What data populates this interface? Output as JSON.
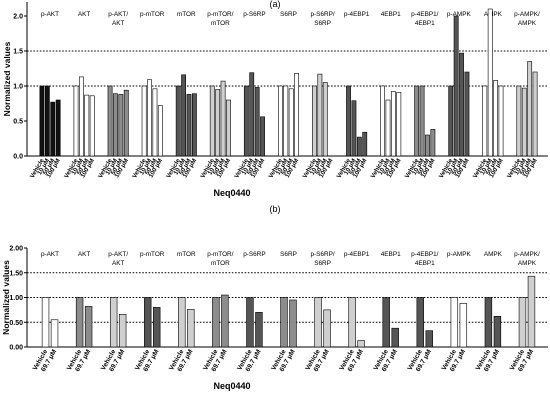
{
  "colors": {
    "black": "#111111",
    "white": "#ffffff",
    "dark_gray": "#555555",
    "mid_gray": "#8c8c8c",
    "light_gray": "#cfcfcf"
  },
  "chart_data": [
    {
      "type": "bar",
      "panel_label": "(a)",
      "ylabel": "Normalized values",
      "xlabel": "Neq0440",
      "ylim": [
        0,
        2.2
      ],
      "yticks": [
        0.0,
        0.5,
        1.0,
        1.5,
        2.0
      ],
      "ytick_labels": [
        "0.0",
        "0.5",
        "1.0",
        "1.5",
        "2.0"
      ],
      "reference_lines": [
        1.0,
        1.5
      ],
      "categories": [
        "Vehicle",
        "10 μM",
        "50 μM",
        "100 μM"
      ],
      "groups": [
        {
          "label": "p-AKT",
          "color": "black",
          "values": [
            1.0,
            1.0,
            0.77,
            0.8
          ]
        },
        {
          "label": "AKT",
          "color": "white",
          "values": [
            1.0,
            1.13,
            0.87,
            0.86
          ]
        },
        {
          "label": "p-AKT/\nAKT",
          "color": "mid_gray",
          "values": [
            1.0,
            0.89,
            0.88,
            0.94
          ]
        },
        {
          "label": "p-mTOR",
          "color": "white",
          "values": [
            1.0,
            1.09,
            0.96,
            0.72
          ]
        },
        {
          "label": "mTOR",
          "color": "dark_gray",
          "values": [
            1.0,
            1.16,
            0.88,
            0.89
          ]
        },
        {
          "label": "p-mTOR/\nmTOR",
          "color": "light_gray",
          "values": [
            1.0,
            0.95,
            1.07,
            0.8
          ]
        },
        {
          "label": "p-S6RP",
          "color": "dark_gray",
          "values": [
            1.0,
            1.19,
            0.98,
            0.56
          ]
        },
        {
          "label": "S6RP",
          "color": "white",
          "values": [
            1.0,
            1.0,
            0.96,
            1.18
          ]
        },
        {
          "label": "p-S6RP/\nS6RP",
          "color": "light_gray",
          "values": [
            1.0,
            1.17,
            1.05,
            0.0
          ]
        },
        {
          "label": "p-4EBP1",
          "color": "dark_gray",
          "values": [
            1.0,
            0.79,
            0.27,
            0.34
          ]
        },
        {
          "label": "4EBP1",
          "color": "white",
          "values": [
            1.0,
            0.8,
            0.92,
            0.91
          ]
        },
        {
          "label": "p-4EBP1/\n4EBP1",
          "color": "mid_gray",
          "values": [
            1.0,
            1.0,
            0.3,
            0.38
          ]
        },
        {
          "label": "p-AMPK",
          "color": "dark_gray",
          "values": [
            1.0,
            2.0,
            1.47,
            1.2
          ]
        },
        {
          "label": "AMPK",
          "color": "white",
          "values": [
            1.0,
            2.1,
            1.08,
            1.0
          ]
        },
        {
          "label": "p-AMPK/\nAMPK",
          "color": "light_gray",
          "values": [
            1.0,
            0.97,
            1.35,
            1.2
          ]
        }
      ]
    },
    {
      "type": "bar",
      "panel_label": "(b)",
      "ylabel": "Normalized values",
      "xlabel": "Neq0440",
      "ylim": [
        0,
        2.0
      ],
      "yticks": [
        0.0,
        0.5,
        1.0,
        1.5,
        2.0
      ],
      "ytick_labels": [
        "0.00",
        "0.50",
        "1.00",
        "1.50",
        "2.00"
      ],
      "reference_lines": [
        0.5,
        1.0,
        1.5
      ],
      "categories": [
        "Vehicle",
        "69.7 μM"
      ],
      "groups": [
        {
          "label": "p-AKT",
          "color": "white",
          "values": [
            1.0,
            0.55
          ]
        },
        {
          "label": "AKT",
          "color": "mid_gray",
          "values": [
            1.0,
            0.82
          ]
        },
        {
          "label": "p-AKT/\nAKT",
          "color": "light_gray",
          "values": [
            1.0,
            0.66
          ]
        },
        {
          "label": "p-mTOR",
          "color": "dark_gray",
          "values": [
            1.0,
            0.8
          ]
        },
        {
          "label": "mTOR",
          "color": "light_gray",
          "values": [
            1.0,
            0.76
          ]
        },
        {
          "label": "p-mTOR/\nmTOR",
          "color": "mid_gray",
          "values": [
            1.0,
            1.05
          ]
        },
        {
          "label": "p-S6RP",
          "color": "dark_gray",
          "values": [
            1.0,
            0.7
          ]
        },
        {
          "label": "S6RP",
          "color": "mid_gray",
          "values": [
            1.0,
            0.95
          ]
        },
        {
          "label": "p-S6RP/\nS6RP",
          "color": "light_gray",
          "values": [
            1.0,
            0.75
          ]
        },
        {
          "label": "p-4EBP1",
          "color": "light_gray",
          "values": [
            1.0,
            0.13
          ]
        },
        {
          "label": "4EBP1",
          "color": "dark_gray",
          "values": [
            1.0,
            0.38
          ]
        },
        {
          "label": "p-4EBP1/\n4EBP1",
          "color": "dark_gray",
          "values": [
            1.0,
            0.33
          ]
        },
        {
          "label": "p-AMPK",
          "color": "white",
          "values": [
            1.0,
            0.88
          ]
        },
        {
          "label": "AMPK",
          "color": "dark_gray",
          "values": [
            1.0,
            0.62
          ]
        },
        {
          "label": "p-AMPK/\nAMPK",
          "color": "light_gray",
          "values": [
            1.0,
            1.43
          ]
        }
      ]
    }
  ]
}
